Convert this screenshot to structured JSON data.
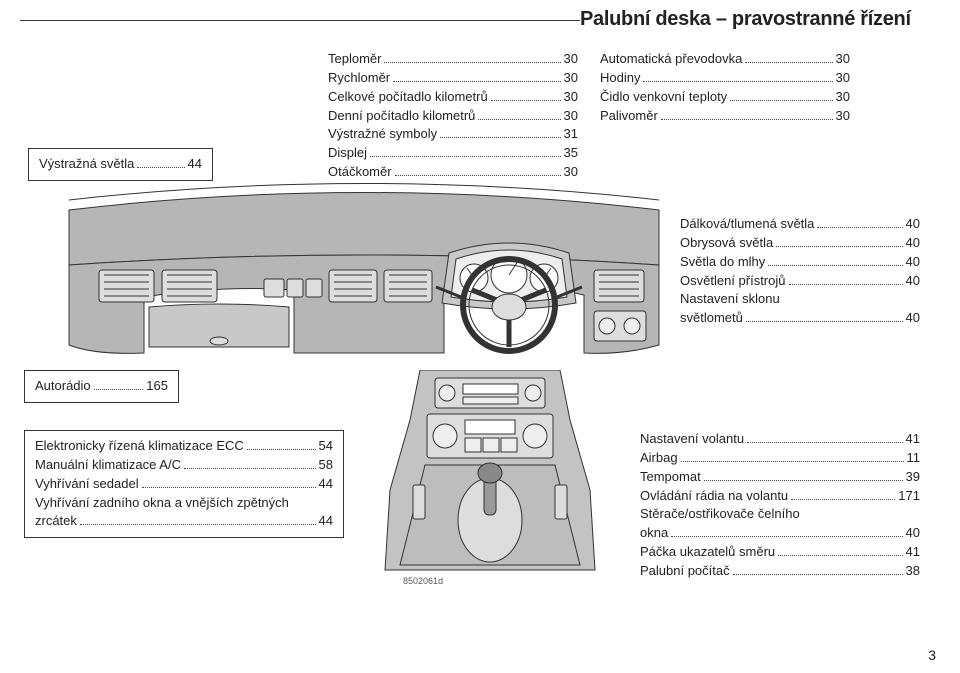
{
  "header": "Palubní deska – pravostranné řízení",
  "page_number": "3",
  "image_code": "8502061d",
  "blocks": {
    "left": [
      {
        "label": "Výstražná světla",
        "page": "44"
      }
    ],
    "mid": [
      {
        "label": "Teploměr",
        "page": "30"
      },
      {
        "label": "Rychloměr",
        "page": "30"
      },
      {
        "label": "Celkové počítadlo kilometrů",
        "page": "30"
      },
      {
        "label": "Denní počítadlo kilometrů",
        "page": "30"
      },
      {
        "label": "Výstražné symboly",
        "page": "31"
      },
      {
        "label": "Displej",
        "page": "35"
      },
      {
        "label": "Otáčkoměr",
        "page": "30"
      }
    ],
    "right": [
      {
        "label": "Automatická převodovka",
        "page": "30"
      },
      {
        "label": "Hodiny",
        "page": "30"
      },
      {
        "label": "Čidlo venkovní teploty",
        "page": "30"
      },
      {
        "label": "Palivoměr",
        "page": "30"
      }
    ],
    "lights": [
      {
        "label": "Dálková/tlumená světla",
        "page": "40"
      },
      {
        "label": "Obrysová světla",
        "page": "40"
      },
      {
        "label": "Světla do mlhy",
        "page": "40"
      },
      {
        "label": "Osvětlení přístrojů",
        "page": "40"
      },
      {
        "label": "Nastavení sklonu světlometů",
        "page": "40",
        "wrap": true
      }
    ],
    "radio": [
      {
        "label": "Autorádio",
        "page": "165"
      }
    ],
    "climate": [
      {
        "label": "Elektronicky řízená klimatizace ECC",
        "page": "54"
      },
      {
        "label": "Manuální klimatizace A/C",
        "page": "58"
      },
      {
        "label": "Vyhřívání sedadel",
        "page": "44"
      },
      {
        "label": "Vyhřívání zadního okna a vnějších zpětných zrcátek",
        "page": "44",
        "wrap": true
      }
    ],
    "steer": [
      {
        "label": "Nastavení volantu",
        "page": "41"
      },
      {
        "label": "Airbag",
        "page": "11"
      },
      {
        "label": "Tempomat",
        "page": "39"
      },
      {
        "label": "Ovládání rádia na volantu",
        "page": "171"
      },
      {
        "label": "Stěrače/ostřikovače čelního okna",
        "page": "40",
        "wrap": true
      },
      {
        "label": "Páčka ukazatelů směru",
        "page": "41"
      },
      {
        "label": "Palubní počítač",
        "page": "38"
      }
    ]
  }
}
